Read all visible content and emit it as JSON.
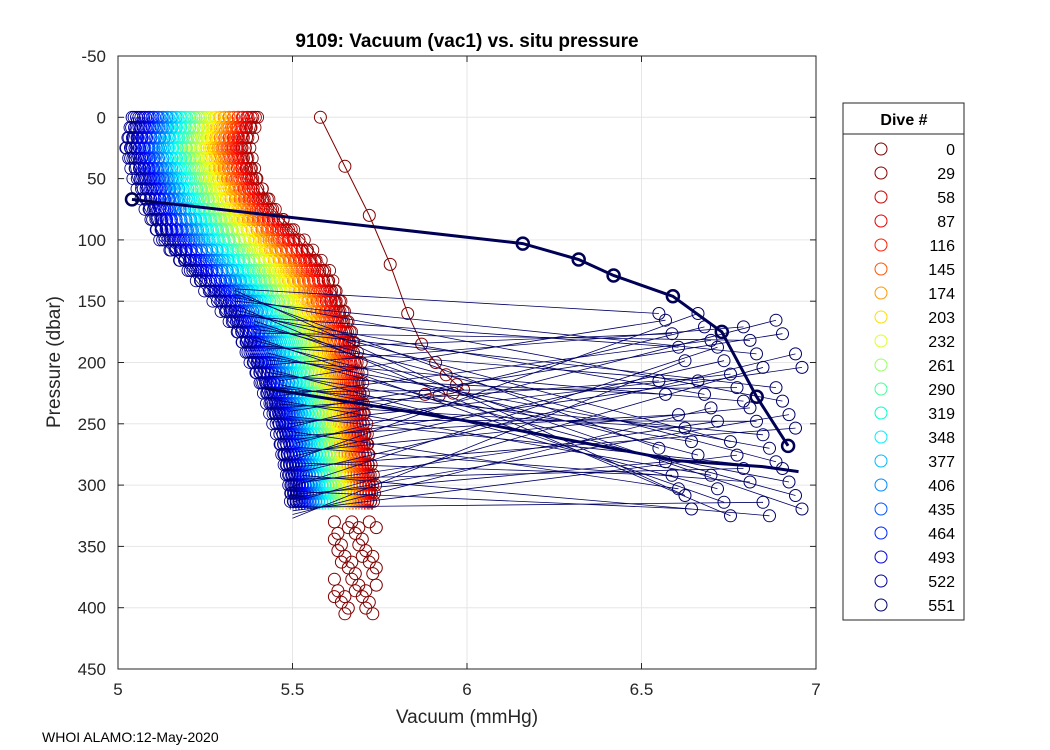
{
  "chart_data": {
    "type": "scatter",
    "title": "9109: Vacuum (vac1) vs. situ pressure",
    "xlabel": "Vacuum (mmHg)",
    "ylabel": "Pressure (dbar)",
    "xlim": [
      5,
      7
    ],
    "ylim": [
      -50,
      450
    ],
    "y_reversed": true,
    "grid": true,
    "x_ticks": [
      5,
      5.5,
      6,
      6.5,
      7
    ],
    "x_tick_labels": [
      "5",
      "5.5",
      "6",
      "6.5",
      "7"
    ],
    "y_ticks": [
      -50,
      0,
      50,
      100,
      150,
      200,
      250,
      300,
      350,
      400,
      450
    ],
    "y_tick_labels": [
      "-50",
      "0",
      "50",
      "100",
      "150",
      "200",
      "250",
      "300",
      "350",
      "400",
      "450"
    ],
    "colormap": "jet (reversed: dark red = dive 0, dark blue = dive 551)",
    "marker": "circle",
    "legend": {
      "title": "Dive #",
      "placement": "right-outside",
      "entries": [
        {
          "label": "0",
          "color": "#800000"
        },
        {
          "label": "29",
          "color": "#8b0000"
        },
        {
          "label": "58",
          "color": "#cc0000"
        },
        {
          "label": "87",
          "color": "#e60000"
        },
        {
          "label": "116",
          "color": "#ff1a00"
        },
        {
          "label": "145",
          "color": "#ff5500"
        },
        {
          "label": "174",
          "color": "#ff9900"
        },
        {
          "label": "203",
          "color": "#ffdd00"
        },
        {
          "label": "232",
          "color": "#ddff22"
        },
        {
          "label": "261",
          "color": "#99ff66"
        },
        {
          "label": "290",
          "color": "#44ff99"
        },
        {
          "label": "319",
          "color": "#00ffcc"
        },
        {
          "label": "348",
          "color": "#00eeff"
        },
        {
          "label": "377",
          "color": "#00bbff"
        },
        {
          "label": "406",
          "color": "#0088ff"
        },
        {
          "label": "435",
          "color": "#0055ff"
        },
        {
          "label": "464",
          "color": "#0022ff"
        },
        {
          "label": "493",
          "color": "#0000dd"
        },
        {
          "label": "522",
          "color": "#000099"
        },
        {
          "label": "551",
          "color": "#000066"
        }
      ]
    },
    "profile_envelope": {
      "description": "Approximate vacuum-vs-pressure profile shape; each dive shifts left as dive number increases",
      "pressure": [
        0,
        25,
        50,
        75,
        100,
        125,
        150,
        175,
        200,
        225,
        250,
        275,
        300,
        320
      ],
      "vacuum_first_dive": [
        5.4,
        5.37,
        5.4,
        5.45,
        5.53,
        5.6,
        5.64,
        5.67,
        5.69,
        5.7,
        5.71,
        5.72,
        5.73,
        5.73
      ],
      "vacuum_last_dive": [
        5.04,
        5.02,
        5.05,
        5.08,
        5.12,
        5.2,
        5.28,
        5.34,
        5.38,
        5.42,
        5.45,
        5.47,
        5.49,
        5.5
      ]
    },
    "deep_cluster": {
      "color": "#800000",
      "vacuum_range": [
        5.62,
        5.74
      ],
      "pressure_range": [
        330,
        405
      ]
    },
    "outlier_dive_0": {
      "vacuum": [
        5.58,
        5.65,
        5.72,
        5.78,
        5.83,
        5.87,
        5.91,
        5.94,
        5.97,
        5.99,
        5.96,
        5.92,
        5.88
      ],
      "pressure": [
        0,
        40,
        80,
        120,
        160,
        185,
        200,
        210,
        218,
        222,
        225,
        227,
        226
      ]
    },
    "surface_segments_late_dives": {
      "description": "Dark-blue excursions to high vacuum at depth",
      "upper_path": {
        "vacuum": [
          5.04,
          6.16,
          6.32,
          6.42,
          6.59,
          6.73,
          6.83,
          6.92
        ],
        "pressure": [
          67,
          103,
          116,
          129,
          146,
          175,
          228,
          268
        ]
      },
      "lower_path": {
        "vacuum": [
          5.42,
          6.05,
          6.6,
          6.85,
          6.95
        ],
        "pressure": [
          221,
          250,
          280,
          285,
          289
        ]
      },
      "right_cluster": {
        "vacuum_range": [
          6.55,
          6.96
        ],
        "pressure_range": [
          160,
          325
        ]
      }
    }
  },
  "footer": {
    "text": "WHOI ALAMO:12-May-2020"
  }
}
